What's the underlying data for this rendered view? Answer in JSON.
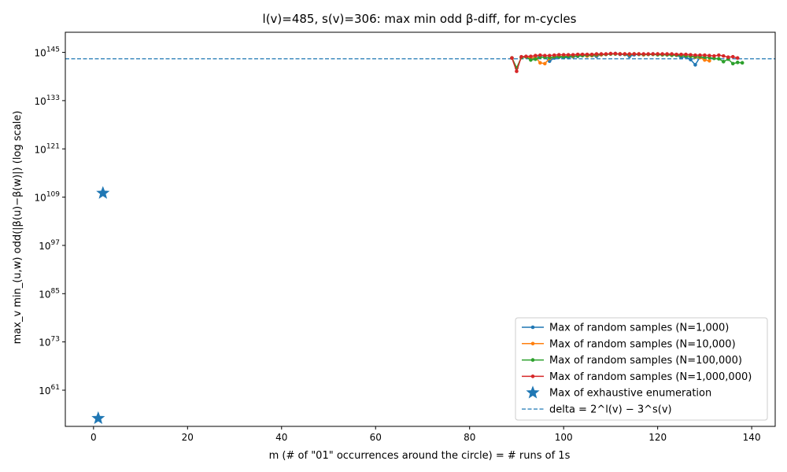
{
  "chart_data": {
    "type": "line",
    "title": "l(v)=485, s(v)=306: max min odd β-diff, for m-cycles",
    "xlabel": "m  (# of \"01\" occurrences around the circle)  = # runs of 1s",
    "ylabel": "max_v min_(u,w) odd(|β(u)−β(w)|)  (log scale)",
    "y_scale": "log",
    "xlim": [
      -6,
      145
    ],
    "ylim_log10": [
      52,
      150
    ],
    "x_ticks": [
      0,
      20,
      40,
      60,
      80,
      100,
      120,
      140
    ],
    "y_ticks": [
      {
        "exp": 61,
        "base": "10",
        "sup": "61"
      },
      {
        "exp": 73,
        "base": "10",
        "sup": "73"
      },
      {
        "exp": 85,
        "base": "10",
        "sup": "85"
      },
      {
        "exp": 97,
        "base": "10",
        "sup": "97"
      },
      {
        "exp": 109,
        "base": "10",
        "sup": "109"
      },
      {
        "exp": 121,
        "base": "10",
        "sup": "121"
      },
      {
        "exp": 133,
        "base": "10",
        "sup": "133"
      },
      {
        "exp": 145,
        "base": "10",
        "sup": "145"
      }
    ],
    "grid": false,
    "legend_position": "bottom-right",
    "delta_line": {
      "label": "delta = 2^l(v) − 3^s(v)",
      "log10": 143.4,
      "color": "#1f77b4"
    },
    "exhaustive": {
      "name": "Max of exhaustive enumeration",
      "color": "#1f77b4",
      "points": [
        {
          "x": 1,
          "log10": 54.0
        },
        {
          "x": 2,
          "log10": 110.0
        }
      ]
    },
    "series": [
      {
        "name": "Max of random samples (N=1,000)",
        "color": "#1f77b4",
        "x": [
          89,
          90,
          91,
          92,
          93,
          94,
          95,
          96,
          97,
          98,
          99,
          100,
          101,
          102,
          103,
          104,
          105,
          106,
          107,
          108,
          109,
          110,
          111,
          112,
          113,
          114,
          115,
          116,
          117,
          118,
          119,
          120,
          121,
          122,
          123,
          124,
          125,
          126,
          127,
          128,
          129,
          130
        ],
        "log10": [
          143.6,
          141.1,
          143.7,
          143.9,
          143.5,
          143.9,
          143.9,
          143.8,
          142.8,
          143.6,
          143.8,
          143.7,
          143.7,
          143.9,
          144.0,
          144.2,
          144.1,
          144.2,
          144.0,
          144.4,
          144.5,
          144.6,
          144.7,
          144.5,
          144.5,
          144.0,
          144.4,
          144.5,
          144.4,
          144.5,
          144.6,
          144.5,
          144.5,
          144.4,
          144.3,
          144.3,
          143.7,
          143.9,
          143.2,
          141.9,
          143.8,
          143.3
        ]
      },
      {
        "name": "Max of random samples (N=10,000)",
        "color": "#ff7f0e",
        "x": [
          89,
          90,
          91,
          92,
          93,
          94,
          95,
          96,
          97,
          98,
          99,
          100,
          101,
          102,
          103,
          104,
          105,
          106,
          107,
          108,
          109,
          110,
          111,
          112,
          113,
          114,
          115,
          116,
          117,
          118,
          119,
          120,
          121,
          122,
          123,
          124,
          125,
          126,
          127,
          128,
          129,
          130,
          131
        ],
        "log10": [
          143.6,
          141.1,
          143.7,
          143.9,
          143.5,
          143.8,
          142.4,
          142.2,
          143.5,
          143.9,
          144.0,
          144.0,
          144.1,
          144.0,
          144.2,
          144.3,
          144.1,
          144.2,
          144.3,
          144.4,
          144.5,
          144.6,
          144.6,
          144.6,
          144.6,
          144.4,
          144.6,
          144.6,
          144.4,
          144.5,
          144.5,
          144.6,
          144.4,
          144.4,
          144.3,
          144.3,
          144.2,
          144.1,
          144.0,
          143.8,
          143.7,
          143.1,
          142.9
        ]
      },
      {
        "name": "Max of random samples (N=100,000)",
        "color": "#2ca02c",
        "x": [
          89,
          90,
          91,
          92,
          93,
          94,
          95,
          96,
          97,
          98,
          99,
          100,
          101,
          102,
          103,
          104,
          105,
          106,
          107,
          108,
          109,
          110,
          111,
          112,
          113,
          114,
          115,
          116,
          117,
          118,
          119,
          120,
          121,
          122,
          123,
          124,
          125,
          126,
          127,
          128,
          129,
          130,
          131,
          132,
          133,
          134,
          135,
          136,
          137,
          138
        ],
        "log10": [
          143.6,
          141.1,
          143.7,
          143.9,
          143.1,
          143.3,
          143.8,
          143.8,
          143.7,
          143.9,
          143.9,
          143.9,
          144.0,
          144.1,
          144.1,
          144.2,
          144.3,
          144.3,
          144.4,
          144.5,
          144.5,
          144.6,
          144.6,
          144.6,
          144.5,
          144.5,
          144.6,
          144.5,
          144.5,
          144.5,
          144.5,
          144.4,
          144.4,
          144.4,
          144.3,
          144.3,
          144.2,
          144.1,
          144.0,
          143.9,
          143.9,
          143.8,
          143.7,
          143.5,
          143.4,
          142.7,
          143.3,
          142.2,
          142.5,
          142.4
        ]
      },
      {
        "name": "Max of random samples (N=1,000,000)",
        "color": "#d62728",
        "x": [
          89,
          90,
          91,
          92,
          93,
          94,
          95,
          96,
          97,
          98,
          99,
          100,
          101,
          102,
          103,
          104,
          105,
          106,
          107,
          108,
          109,
          110,
          111,
          112,
          113,
          114,
          115,
          116,
          117,
          118,
          119,
          120,
          121,
          122,
          123,
          124,
          125,
          126,
          127,
          128,
          129,
          130,
          131,
          132,
          133,
          134,
          135,
          136,
          137
        ],
        "log10": [
          143.6,
          140.3,
          143.9,
          144.0,
          144.0,
          144.2,
          144.3,
          144.2,
          144.2,
          144.3,
          144.4,
          144.4,
          144.4,
          144.4,
          144.5,
          144.5,
          144.5,
          144.5,
          144.6,
          144.6,
          144.6,
          144.7,
          144.7,
          144.6,
          144.6,
          144.6,
          144.6,
          144.6,
          144.6,
          144.6,
          144.6,
          144.6,
          144.6,
          144.6,
          144.6,
          144.5,
          144.5,
          144.5,
          144.4,
          144.3,
          144.3,
          144.3,
          144.2,
          144.1,
          144.3,
          144.1,
          143.8,
          143.9,
          143.6
        ]
      }
    ]
  }
}
